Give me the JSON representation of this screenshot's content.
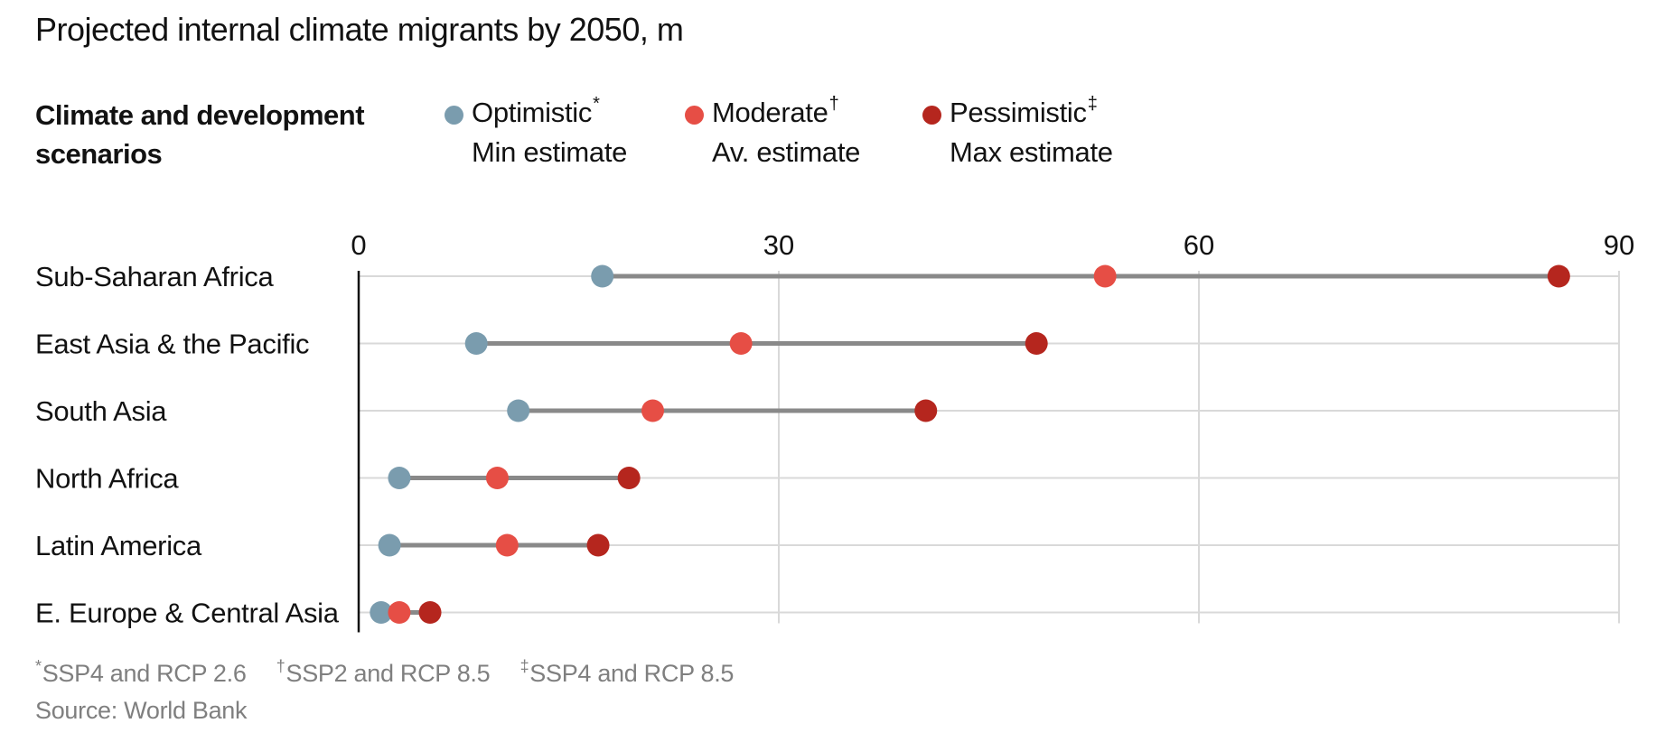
{
  "subtitle": "Projected internal climate migrants by 2050, m",
  "legend": {
    "title_line1": "Climate and development",
    "title_line2": "scenarios",
    "items": [
      {
        "name": "Optimistic",
        "mark": "*",
        "sub": "Min estimate",
        "color": "#7a9cae"
      },
      {
        "name": "Moderate",
        "mark": "†",
        "sub": "Av. estimate",
        "color": "#e64e45"
      },
      {
        "name": "Pessimistic",
        "mark": "‡",
        "sub": "Max estimate",
        "color": "#b5261e"
      }
    ]
  },
  "footnotes": [
    {
      "mark": "*",
      "text": "SSP4 and RCP 2.6"
    },
    {
      "mark": "†",
      "text": "SSP2 and RCP 8.5"
    },
    {
      "mark": "‡",
      "text": "SSP4 and RCP 8.5"
    }
  ],
  "source": "Source: World Bank",
  "chart_data": {
    "type": "dot-range",
    "xlim": [
      0,
      90
    ],
    "xticks": [
      0,
      30,
      60,
      90
    ],
    "grid": true,
    "series_order": [
      "optimistic",
      "moderate",
      "pessimistic"
    ],
    "categories": [
      {
        "label": "Sub-Saharan Africa",
        "optimistic": 17.4,
        "moderate": 53.3,
        "pessimistic": 85.7
      },
      {
        "label": "East Asia & the Pacific",
        "optimistic": 8.4,
        "moderate": 27.3,
        "pessimistic": 48.4
      },
      {
        "label": "South Asia",
        "optimistic": 11.4,
        "moderate": 21.0,
        "pessimistic": 40.5
      },
      {
        "label": "North Africa",
        "optimistic": 2.9,
        "moderate": 9.9,
        "pessimistic": 19.3
      },
      {
        "label": "Latin America",
        "optimistic": 2.2,
        "moderate": 10.6,
        "pessimistic": 17.1
      },
      {
        "label": "E. Europe & Central Asia",
        "optimistic": 1.6,
        "moderate": 2.9,
        "pessimistic": 5.1
      }
    ]
  }
}
